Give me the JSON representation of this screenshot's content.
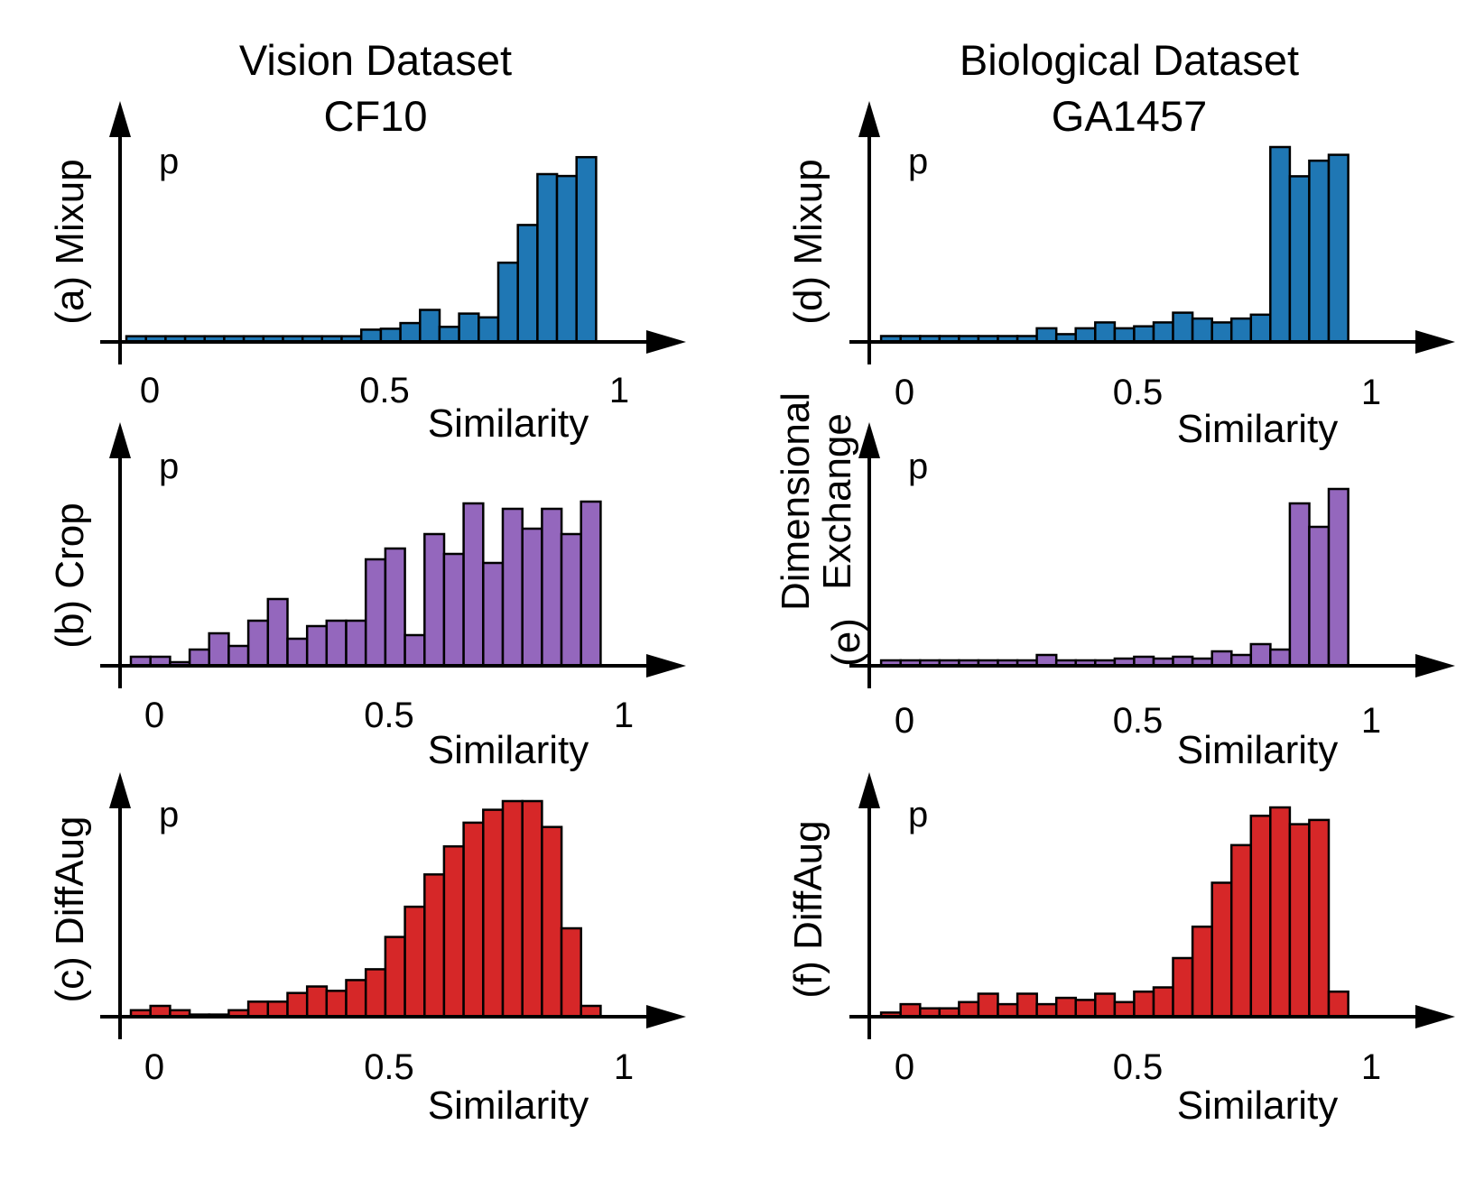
{
  "figure": {
    "columns": [
      {
        "title_line1": "Vision Dataset",
        "title_line2": "CF10"
      },
      {
        "title_line1": "Biological Dataset",
        "title_line2": "GA1457"
      }
    ]
  },
  "colors": {
    "mixup": "#1f77b4",
    "crop": "#9467bd",
    "diffaug": "#d62728",
    "axis": "#000000"
  },
  "chart_data": [
    {
      "type": "bar",
      "panel": "a",
      "title": "",
      "ylabel": "(a) Mixup",
      "ylabel_lines": [
        "(a) Mixup"
      ],
      "y_symbol": "p",
      "xlabel": "Similarity",
      "xticks": [
        "0",
        "0.5",
        "1"
      ],
      "xlim": [
        -0.05,
        1.05
      ],
      "bin_start": -0.05,
      "bin_width": 0.0417,
      "color_key": "mixup",
      "values": [
        0.03,
        0.03,
        0.03,
        0.03,
        0.03,
        0.03,
        0.03,
        0.03,
        0.03,
        0.03,
        0.03,
        0.03,
        0.065,
        0.07,
        0.1,
        0.17,
        0.08,
        0.15,
        0.13,
        0.42,
        0.62,
        0.89,
        0.88,
        0.98
      ]
    },
    {
      "type": "bar",
      "panel": "b",
      "title": "",
      "ylabel": "(b) Crop",
      "ylabel_lines": [
        "(b) Crop"
      ],
      "y_symbol": "p",
      "xlabel": "Similarity",
      "xticks": [
        "0",
        "0.5",
        "1"
      ],
      "xlim": [
        -0.05,
        1.05
      ],
      "bin_start": -0.05,
      "bin_width": 0.0417,
      "color_key": "crop",
      "values": [
        0.05,
        0.05,
        0.02,
        0.09,
        0.18,
        0.11,
        0.25,
        0.37,
        0.15,
        0.22,
        0.25,
        0.25,
        0.59,
        0.65,
        0.17,
        0.73,
        0.62,
        0.9,
        0.57,
        0.87,
        0.76,
        0.87,
        0.73,
        0.91
      ]
    },
    {
      "type": "bar",
      "panel": "c",
      "title": "",
      "ylabel": "(c) DiffAug",
      "ylabel_lines": [
        "(c) DiffAug"
      ],
      "y_symbol": "p",
      "xlabel": "Similarity",
      "xticks": [
        "0",
        "0.5",
        "1"
      ],
      "xlim": [
        -0.05,
        1.05
      ],
      "bin_start": -0.05,
      "bin_width": 0.0417,
      "color_key": "diffaug",
      "values": [
        0.03,
        0.05,
        0.03,
        0.01,
        0.01,
        0.03,
        0.07,
        0.07,
        0.11,
        0.14,
        0.12,
        0.17,
        0.22,
        0.37,
        0.51,
        0.66,
        0.79,
        0.9,
        0.96,
        1.0,
        1.0,
        0.88,
        0.41,
        0.05
      ]
    },
    {
      "type": "bar",
      "panel": "d",
      "title": "",
      "ylabel": "(d) Mixup",
      "ylabel_lines": [
        "(d) Mixup"
      ],
      "y_symbol": "p",
      "xlabel": "Similarity",
      "xticks": [
        "0",
        "0.5",
        "1"
      ],
      "xlim": [
        -0.05,
        1.05
      ],
      "bin_start": -0.05,
      "bin_width": 0.0417,
      "color_key": "mixup",
      "values": [
        0.03,
        0.03,
        0.03,
        0.03,
        0.03,
        0.03,
        0.03,
        0.03,
        0.07,
        0.04,
        0.07,
        0.1,
        0.07,
        0.08,
        0.1,
        0.15,
        0.12,
        0.1,
        0.12,
        0.14,
        1.0,
        0.85,
        0.93,
        0.96
      ]
    },
    {
      "type": "bar",
      "panel": "e",
      "title": "",
      "ylabel": "(e) Dimensional Exchange",
      "ylabel_lines": [
        "(e)",
        "Dimensional",
        "Exchange"
      ],
      "y_symbol": "p",
      "xlabel": "Similarity",
      "xticks": [
        "0",
        "0.5",
        "1"
      ],
      "xlim": [
        -0.05,
        1.05
      ],
      "bin_start": -0.05,
      "bin_width": 0.0417,
      "color_key": "crop",
      "values": [
        0.03,
        0.03,
        0.03,
        0.03,
        0.03,
        0.03,
        0.03,
        0.03,
        0.06,
        0.03,
        0.03,
        0.03,
        0.04,
        0.05,
        0.04,
        0.05,
        0.04,
        0.08,
        0.06,
        0.12,
        0.09,
        0.9,
        0.77,
        0.98
      ]
    },
    {
      "type": "bar",
      "panel": "f",
      "title": "",
      "ylabel": "(f) DiffAug",
      "ylabel_lines": [
        "(f) DiffAug"
      ],
      "y_symbol": "p",
      "xlabel": "Similarity",
      "xticks": [
        "0",
        "0.5",
        "1"
      ],
      "xlim": [
        -0.05,
        1.05
      ],
      "bin_start": -0.05,
      "bin_width": 0.0417,
      "color_key": "diffaug",
      "values": [
        0.02,
        0.06,
        0.04,
        0.04,
        0.07,
        0.11,
        0.06,
        0.11,
        0.06,
        0.09,
        0.08,
        0.11,
        0.07,
        0.12,
        0.14,
        0.28,
        0.43,
        0.64,
        0.82,
        0.96,
        1.0,
        0.92,
        0.94,
        0.12
      ]
    }
  ]
}
